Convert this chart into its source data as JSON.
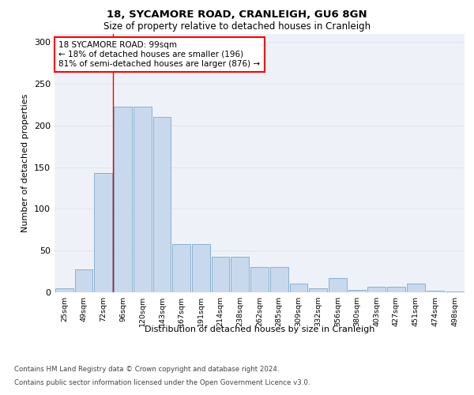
{
  "title1": "18, SYCAMORE ROAD, CRANLEIGH, GU6 8GN",
  "title2": "Size of property relative to detached houses in Cranleigh",
  "xlabel": "Distribution of detached houses by size in Cranleigh",
  "ylabel": "Number of detached properties",
  "categories": [
    "25sqm",
    "49sqm",
    "72sqm",
    "96sqm",
    "120sqm",
    "143sqm",
    "167sqm",
    "191sqm",
    "214sqm",
    "238sqm",
    "262sqm",
    "285sqm",
    "309sqm",
    "332sqm",
    "356sqm",
    "380sqm",
    "403sqm",
    "427sqm",
    "451sqm",
    "474sqm",
    "498sqm"
  ],
  "values": [
    5,
    27,
    143,
    222,
    222,
    210,
    58,
    58,
    43,
    43,
    30,
    30,
    10,
    5,
    17,
    3,
    7,
    7,
    10,
    2,
    1
  ],
  "bar_color": "#c9d9ed",
  "bar_edge_color": "#7ba7cc",
  "grid_color": "#dde6f0",
  "annotation_box_text": "18 SYCAMORE ROAD: 99sqm\n← 18% of detached houses are smaller (196)\n81% of semi-detached houses are larger (876) →",
  "annotation_box_color": "red",
  "vline_color": "red",
  "footer1": "Contains HM Land Registry data © Crown copyright and database right 2024.",
  "footer2": "Contains public sector information licensed under the Open Government Licence v3.0.",
  "ylim": [
    0,
    310
  ],
  "yticks": [
    0,
    50,
    100,
    150,
    200,
    250,
    300
  ],
  "background_color": "#eef2f8"
}
